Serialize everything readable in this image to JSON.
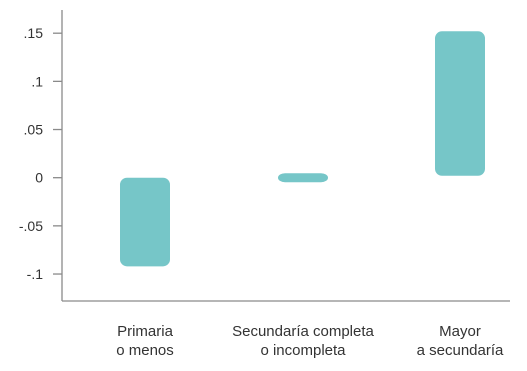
{
  "chart_data": {
    "type": "bar",
    "subtype": "floating-range",
    "categories": [
      [
        "Primaria",
        "o menos"
      ],
      [
        "Secundaría completa",
        "o incompleta"
      ],
      [
        "Mayor",
        "a secundaría"
      ]
    ],
    "ranges": [
      {
        "low": -0.092,
        "high": 0.0
      },
      {
        "low": -0.004,
        "high": 0.004
      },
      {
        "low": 0.002,
        "high": 0.152
      }
    ],
    "y_ticks": [
      0.15,
      0.1,
      0.05,
      0,
      -0.05,
      -0.1
    ],
    "y_tick_labels": [
      ".15",
      ".1",
      ".05",
      "0",
      "-.05",
      "-.1"
    ],
    "ylim": [
      -0.128,
      0.172
    ],
    "grid": false,
    "bar_color": "#76C6C8",
    "axis_color": "#8a8a8a"
  }
}
